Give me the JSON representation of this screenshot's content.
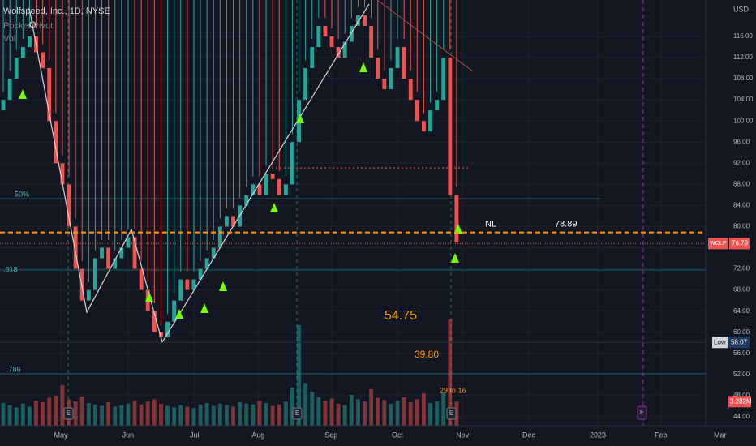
{
  "chart_data": {
    "type": "candlestick",
    "title": "Wolfspeed, Inc., 1D, NYSE",
    "indicators": [
      "Pocket Pivot",
      "Vol"
    ],
    "currency": "USD",
    "pivot_marker": "O",
    "earnings_marker": "E",
    "categories": [
      null,
      null,
      null,
      null,
      null,
      null,
      null,
      null,
      null,
      null,
      null,
      null,
      null,
      null,
      null,
      null,
      null,
      null,
      null,
      null,
      null,
      null,
      null,
      null,
      null,
      null,
      null,
      null,
      null,
      null,
      null,
      null,
      null,
      null,
      null,
      null,
      null,
      null,
      null,
      null,
      null,
      null,
      null,
      null,
      null,
      null,
      null,
      null,
      null,
      null,
      null,
      null,
      null,
      null,
      null,
      null,
      null,
      null,
      null,
      null,
      null,
      null,
      null,
      null,
      null,
      null,
      null,
      null,
      null,
      null
    ],
    "open": [
      102,
      104,
      108,
      112,
      114,
      116,
      113,
      110,
      100,
      92,
      88,
      80,
      72,
      66,
      68,
      74,
      76,
      72,
      74,
      76,
      78,
      72,
      68,
      64,
      60,
      59,
      62,
      66,
      70,
      68,
      70,
      72,
      74,
      76,
      80,
      82,
      80,
      84,
      86,
      88,
      86,
      90,
      89,
      86,
      88,
      96,
      104,
      110,
      114,
      118,
      116,
      114,
      112,
      115,
      118,
      120,
      118,
      112,
      108,
      106,
      110,
      114,
      108,
      104,
      100,
      98,
      102,
      104,
      112,
      86
    ],
    "high": [
      105.5,
      109.5,
      113.5,
      115.5,
      117.5,
      117.5,
      114.5,
      111.5,
      101.5,
      93.5,
      89.5,
      81.5,
      73.5,
      69.5,
      75.5,
      77.5,
      77.5,
      75.5,
      77.5,
      79.5,
      79.5,
      73.5,
      69.5,
      65.5,
      61.5,
      63.5,
      67.5,
      71.5,
      71.5,
      71.5,
      73.5,
      75.5,
      77.5,
      81.5,
      83.5,
      83.5,
      85.5,
      87.5,
      89.5,
      89.5,
      91.5,
      91.5,
      90.5,
      89.5,
      97.5,
      105.5,
      111.5,
      115.5,
      119.5,
      119.5,
      117.5,
      115.5,
      116.5,
      119.5,
      121.5,
      121.5,
      119.5,
      113.5,
      109.5,
      111.5,
      115.5,
      115.5,
      109.5,
      105.5,
      101.5,
      103.5,
      105.5,
      113.5,
      113.5,
      87.5
    ],
    "low": {
      "label": "Low",
      "value": 58.07
    },
    "close": [
      104,
      108,
      112,
      114,
      116,
      113,
      110,
      100,
      92,
      88,
      80,
      72,
      66,
      68,
      74,
      76,
      72,
      74,
      76,
      78,
      72,
      68,
      64,
      60,
      59,
      62,
      66,
      70,
      68,
      70,
      72,
      74,
      76,
      80,
      82,
      80,
      84,
      86,
      88,
      86,
      90,
      89,
      86,
      88,
      96,
      104,
      110,
      114,
      118,
      116,
      114,
      112,
      115,
      118,
      120,
      118,
      112,
      108,
      106,
      110,
      114,
      108,
      104,
      100,
      98,
      102,
      104,
      112,
      86,
      77
    ],
    "volume": [
      3.1,
      2.8,
      2.5,
      3.0,
      2.6,
      3.4,
      3.2,
      3.8,
      4.1,
      5.5,
      3.6,
      3.3,
      4.0,
      3.1,
      2.9,
      2.7,
      3.2,
      2.6,
      2.8,
      3.0,
      3.4,
      2.9,
      3.3,
      3.6,
      3.0,
      2.7,
      2.5,
      2.8,
      2.6,
      2.4,
      2.9,
      3.1,
      2.7,
      3.0,
      2.8,
      2.6,
      3.2,
      3.0,
      2.9,
      3.4,
      3.1,
      2.7,
      2.9,
      3.3,
      5.2,
      13.7,
      5.8,
      4.6,
      3.9,
      3.4,
      3.7,
      3.0,
      2.8,
      4.2,
      3.6,
      3.3,
      5.0,
      3.8,
      3.5,
      3.0,
      3.4,
      3.9,
      3.2,
      3.6,
      4.4,
      3.1,
      3.3,
      4.6,
      14.5,
      3.282
    ],
    "volume_label": "3.282M",
    "up_color": "#26a69a",
    "down_color": "#ef5350",
    "xlim": [
      -0.5,
      110
    ],
    "xticks": [
      {
        "value": 8.76,
        "label": "May"
      },
      {
        "value": 19.0,
        "label": "Jun"
      },
      {
        "value": 29.1,
        "label": "Jul"
      },
      {
        "value": 38.8,
        "label": "Aug"
      },
      {
        "value": 49.9,
        "label": "Sep"
      },
      {
        "value": 60.0,
        "label": "Oct"
      },
      {
        "value": 69.9,
        "label": "Nov"
      },
      {
        "value": 80.0,
        "label": "Dec"
      },
      {
        "value": 90.5,
        "label": "2023"
      },
      {
        "value": 100.1,
        "label": "Feb"
      },
      {
        "value": 109.1,
        "label": "Mar"
      }
    ],
    "ylim": [
      42.3,
      122.9
    ],
    "vlim": [
      0,
      58
    ],
    "yticks": [
      {
        "value": 44,
        "label": "44.00"
      },
      {
        "value": 48,
        "label": "48.00"
      },
      {
        "value": 52,
        "label": "52.00"
      },
      {
        "value": 56,
        "label": "56.00"
      },
      {
        "value": 60,
        "label": "60.00"
      },
      {
        "value": 64,
        "label": "64.00"
      },
      {
        "value": 68,
        "label": "68.00"
      },
      {
        "value": 72,
        "label": "72.00"
      },
      {
        "value": 76,
        "label": "76.00"
      },
      {
        "value": 80,
        "label": "80.00"
      },
      {
        "value": 84,
        "label": "84.00"
      },
      {
        "value": 88,
        "label": "88.00"
      },
      {
        "value": 92,
        "label": "92.00"
      },
      {
        "value": 96,
        "label": "96.00"
      },
      {
        "value": 100,
        "label": "100.00"
      },
      {
        "value": 104,
        "label": "104.00"
      },
      {
        "value": 108,
        "label": "108.00"
      },
      {
        "value": 112,
        "label": "112.00"
      },
      {
        "value": 116,
        "label": "116.00"
      }
    ],
    "grid": true,
    "fib_labels": [
      "50%",
      ".618",
      ".786"
    ],
    "neckline": {
      "label": "NL",
      "value": 78.89
    },
    "last_price": {
      "symbol": "WOLF",
      "value": 76.79
    },
    "annotations": [
      "54.75",
      "39.80",
      "29 to 16"
    ]
  }
}
